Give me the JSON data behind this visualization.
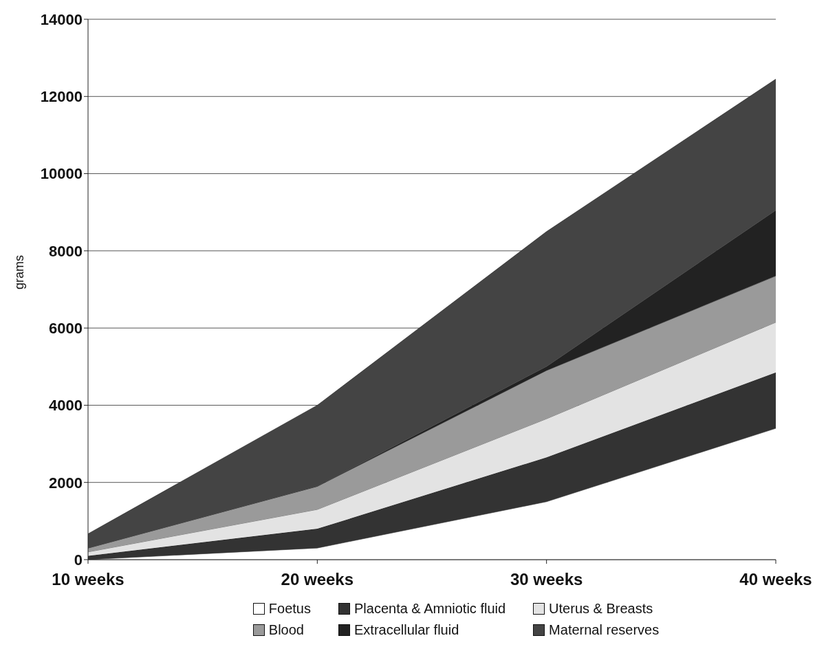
{
  "chart_data": {
    "type": "area",
    "stacked": true,
    "ylabel": "grams",
    "categories": [
      "10 weeks",
      "20 weeks",
      "30 weeks",
      "40 weeks"
    ],
    "series": [
      {
        "name": "Foetus",
        "color": "#ffffff",
        "values": [
          0,
          300,
          1500,
          3400
        ]
      },
      {
        "name": "Placenta & Amniotic fluid",
        "color": "#333333",
        "values": [
          100,
          500,
          1150,
          1450
        ]
      },
      {
        "name": "Uterus & Breasts",
        "color": "#e3e3e3",
        "values": [
          100,
          500,
          1000,
          1300
        ]
      },
      {
        "name": "Blood",
        "color": "#9a9a9a",
        "values": [
          100,
          600,
          1250,
          1200
        ]
      },
      {
        "name": "Extracellular fluid",
        "color": "#222222",
        "values": [
          0,
          0,
          100,
          1700
        ]
      },
      {
        "name": "Maternal reserves",
        "color": "#444444",
        "values": [
          370,
          2100,
          3500,
          3400
        ]
      }
    ],
    "ylim": [
      0,
      14000
    ],
    "yticks": [
      0,
      2000,
      4000,
      6000,
      8000,
      10000,
      12000,
      14000
    ],
    "grid": "y",
    "legend": "bottom"
  }
}
